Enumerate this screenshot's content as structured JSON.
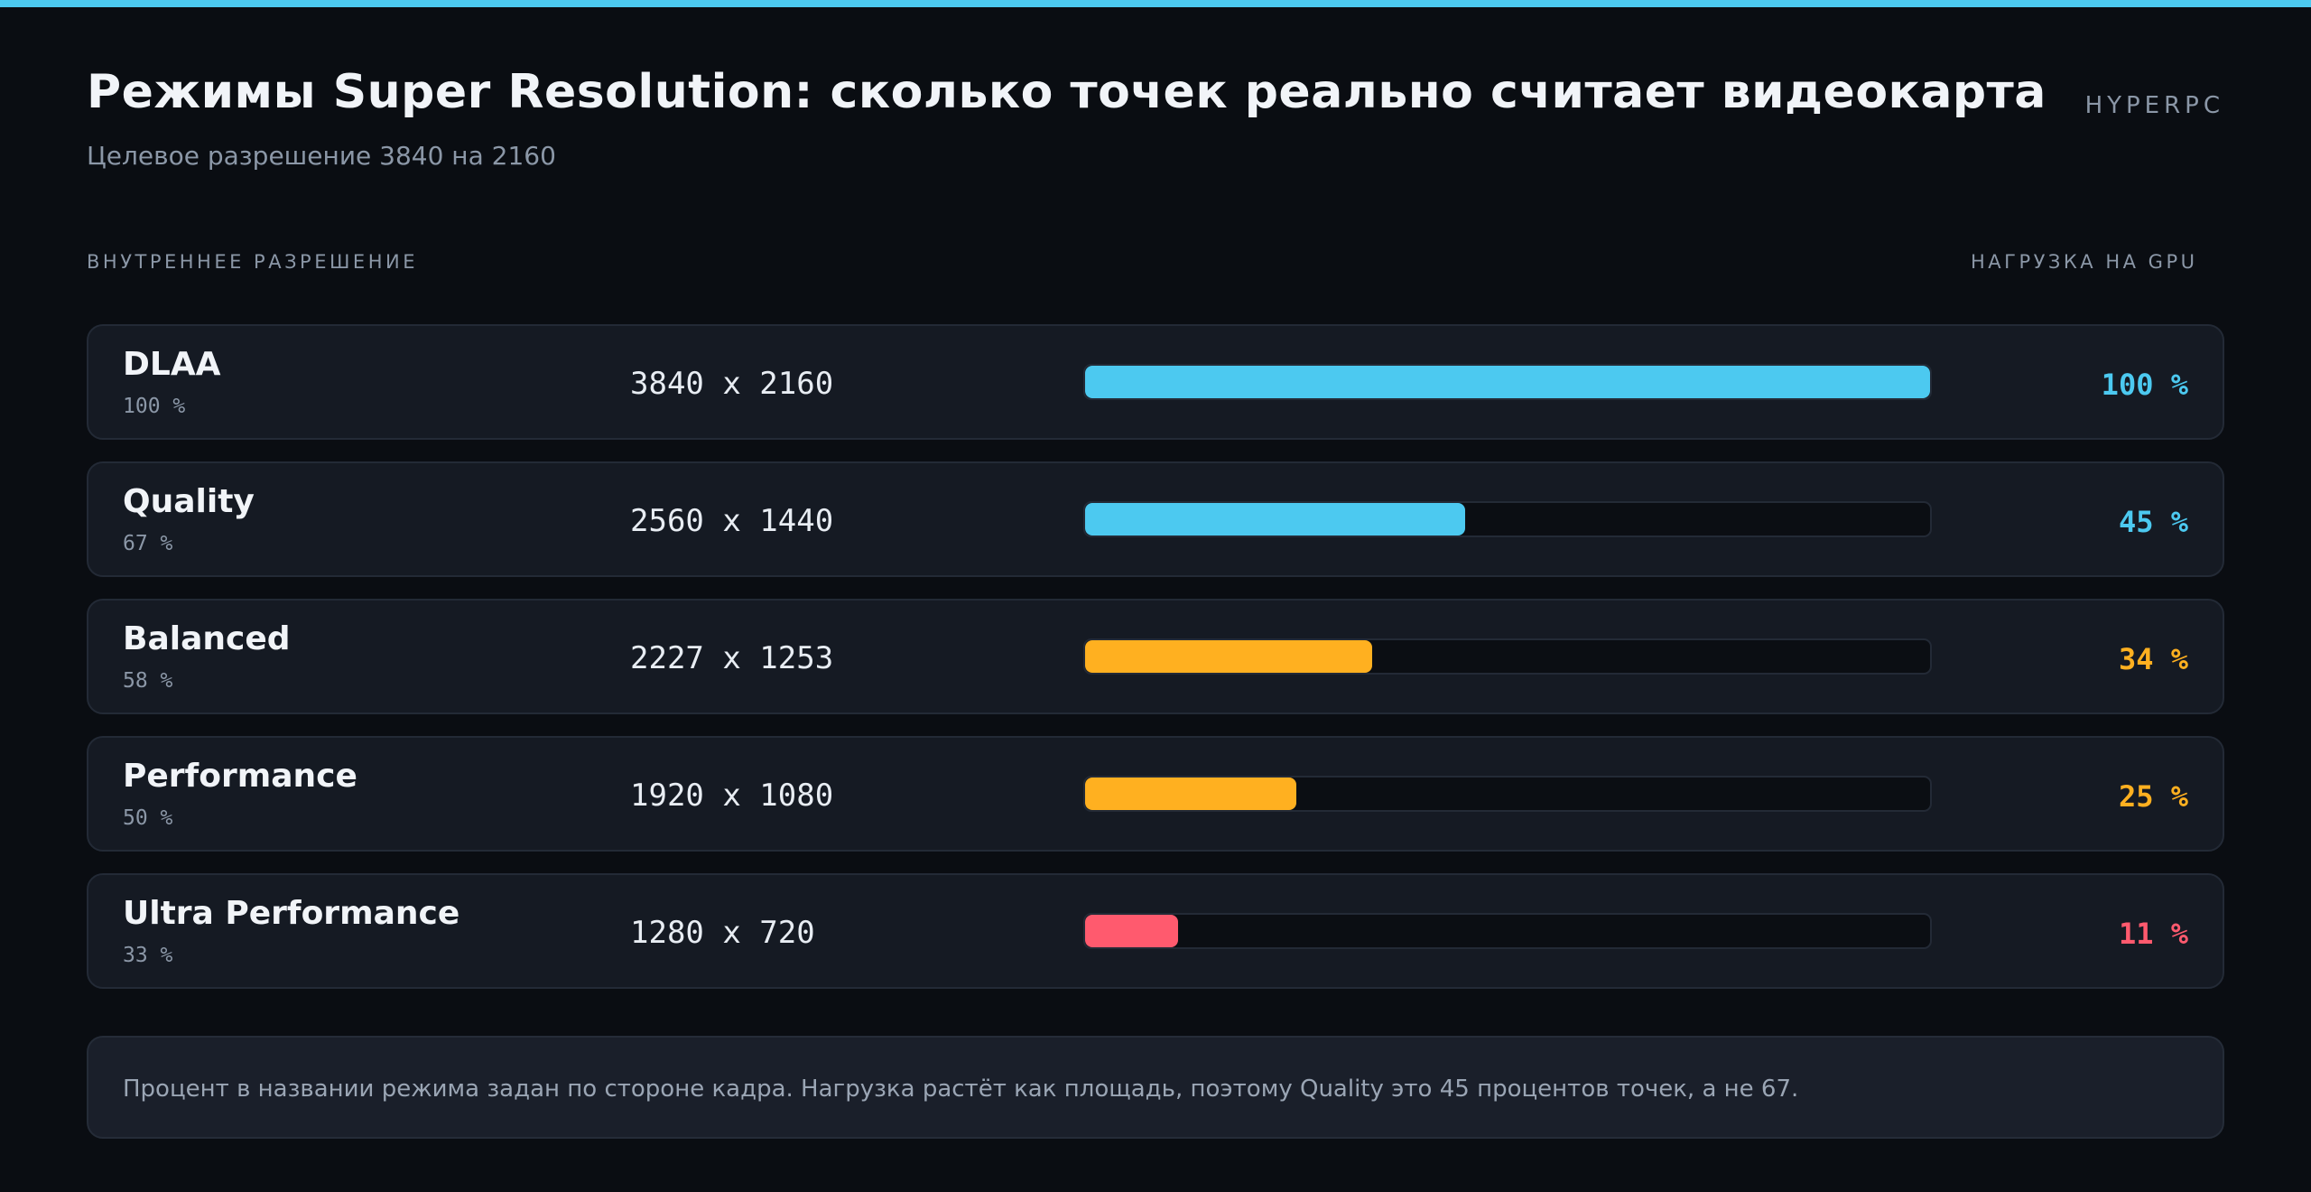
{
  "header": {
    "title": "Режимы Super Resolution: сколько точек реально считает видеокарта",
    "subtitle": "Целевое разрешение 3840 на 2160",
    "brand": "HYPERPC"
  },
  "columns": {
    "left": "ВНУТРЕННЕЕ РАЗРЕШЕНИЕ",
    "right": "НАГРУЗКА НА GPU"
  },
  "colors": {
    "accent_blue": "#4cc9f0",
    "accent_orange": "#ffb020",
    "accent_red": "#ff5a6e"
  },
  "chart_data": {
    "type": "bar",
    "categories": [
      "DLAA",
      "Quality",
      "Balanced",
      "Performance",
      "Ultra Performance"
    ],
    "scale_labels": [
      "100 %",
      "67 %",
      "58 %",
      "50 %",
      "33 %"
    ],
    "resolutions": [
      "3840 x 2160",
      "2560 x 1440",
      "2227 x 1253",
      "1920 x 1080",
      "1280 x 720"
    ],
    "values": [
      100,
      45,
      34,
      25,
      11
    ],
    "value_labels": [
      "100 %",
      "45 %",
      "34 %",
      "25 %",
      "11 %"
    ],
    "bar_colors": [
      "#4cc9f0",
      "#4cc9f0",
      "#ffb020",
      "#ffb020",
      "#ff5a6e"
    ],
    "ylim": [
      0,
      100
    ],
    "orientation": "horizontal"
  },
  "note": {
    "text": "Процент в названии режима задан по стороне кадра. Нагрузка растёт как площадь, поэтому Quality это 45 процентов точек, а не 67."
  }
}
